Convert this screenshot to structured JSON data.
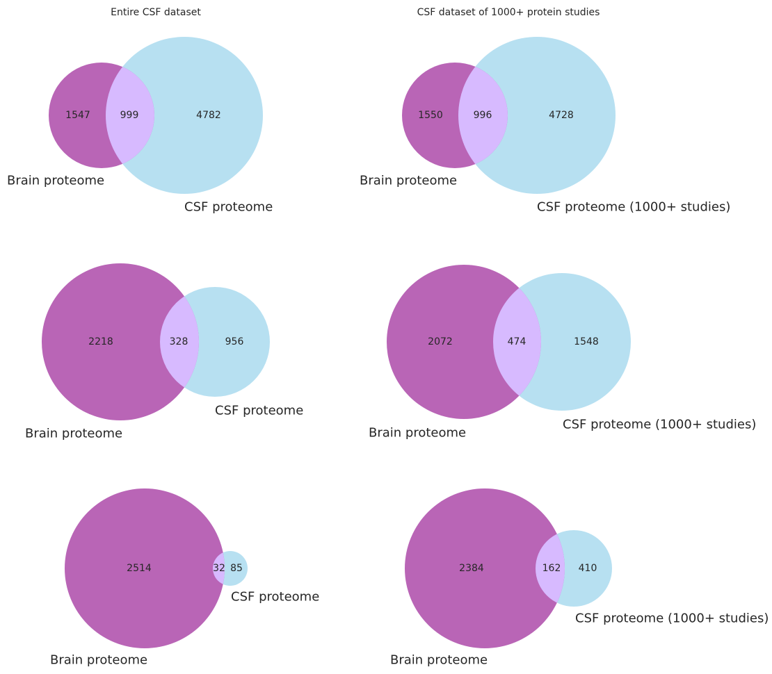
{
  "column_titles": [
    "Entire CSF dataset",
    "CSF dataset of 1000+ protein studies"
  ],
  "colors": {
    "brain_only": "#b965b6",
    "csf_only": "#b7e0f1",
    "overlap": "#d7baff",
    "text": "#262626",
    "background": "#ffffff"
  },
  "venns": [
    {
      "id": "row1-entire",
      "left_label": "Brain proteome",
      "right_label": "CSF proteome",
      "left_only": "1547",
      "overlap": "999",
      "right_only": "4782"
    },
    {
      "id": "row1-1000plus",
      "left_label": "Brain proteome",
      "right_label": "CSF proteome (1000+ studies)",
      "left_only": "1550",
      "overlap": "996",
      "right_only": "4728"
    },
    {
      "id": "row2-entire",
      "left_label": "Brain proteome",
      "right_label": "CSF proteome",
      "left_only": "2218",
      "overlap": "328",
      "right_only": "956"
    },
    {
      "id": "row2-1000plus",
      "left_label": "Brain proteome",
      "right_label": "CSF proteome (1000+ studies)",
      "left_only": "2072",
      "overlap": "474",
      "right_only": "1548"
    },
    {
      "id": "row3-entire",
      "left_label": "Brain proteome",
      "right_label": "CSF proteome",
      "left_only": "2514",
      "overlap": "32",
      "right_only": "85"
    },
    {
      "id": "row3-1000plus",
      "left_label": "Brain proteome",
      "right_label": "CSF proteome (1000+ studies)",
      "left_only": "2384",
      "overlap": "162",
      "right_only": "410"
    }
  ]
}
